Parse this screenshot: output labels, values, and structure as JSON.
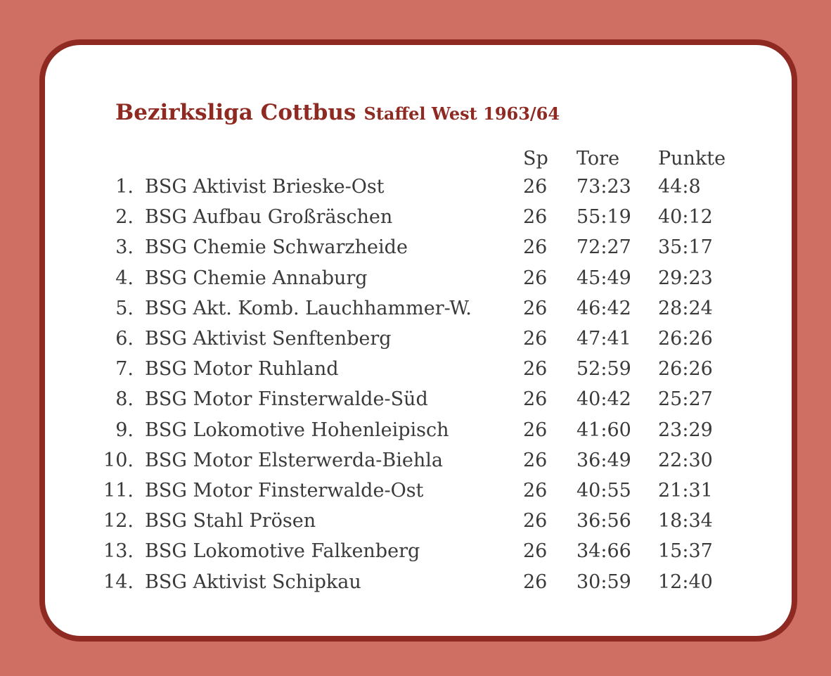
{
  "title": {
    "main": "Bezirksliga Cottbus",
    "sub": "Staffel West 1963/64"
  },
  "columns": {
    "sp": "Sp",
    "tore": "Tore",
    "punkte": "Punkte"
  },
  "rows": [
    {
      "rank": "1.",
      "team": "BSG Aktivist Brieske-Ost",
      "sp": "26",
      "tore": "73:23",
      "punkte": "44:8"
    },
    {
      "rank": "2.",
      "team": "BSG Aufbau Großräschen",
      "sp": "26",
      "tore": "55:19",
      "punkte": "40:12"
    },
    {
      "rank": "3.",
      "team": "BSG Chemie Schwarzheide",
      "sp": "26",
      "tore": "72:27",
      "punkte": "35:17"
    },
    {
      "rank": "4.",
      "team": "BSG Chemie Annaburg",
      "sp": "26",
      "tore": "45:49",
      "punkte": "29:23"
    },
    {
      "rank": "5.",
      "team": "BSG Akt. Komb. Lauchhammer-W.",
      "sp": "26",
      "tore": "46:42",
      "punkte": "28:24"
    },
    {
      "rank": "6.",
      "team": "BSG Aktivist Senftenberg",
      "sp": "26",
      "tore": "47:41",
      "punkte": "26:26"
    },
    {
      "rank": "7.",
      "team": "BSG Motor Ruhland",
      "sp": "26",
      "tore": "52:59",
      "punkte": "26:26"
    },
    {
      "rank": "8.",
      "team": "BSG Motor Finsterwalde-Süd",
      "sp": "26",
      "tore": "40:42",
      "punkte": "25:27"
    },
    {
      "rank": "9.",
      "team": "BSG Lokomotive Hohenleipisch",
      "sp": "26",
      "tore": "41:60",
      "punkte": "23:29"
    },
    {
      "rank": "10.",
      "team": "BSG Motor Elsterwerda-Biehla",
      "sp": "26",
      "tore": "36:49",
      "punkte": "22:30"
    },
    {
      "rank": "11.",
      "team": "BSG Motor Finsterwalde-Ost",
      "sp": "26",
      "tore": "40:55",
      "punkte": "21:31"
    },
    {
      "rank": "12.",
      "team": "BSG Stahl Prösen",
      "sp": "26",
      "tore": "36:56",
      "punkte": "18:34"
    },
    {
      "rank": "13.",
      "team": "BSG Lokomotive Falkenberg",
      "sp": "26",
      "tore": "34:66",
      "punkte": "15:37"
    },
    {
      "rank": "14.",
      "team": "BSG Aktivist Schipkau",
      "sp": "26",
      "tore": "30:59",
      "punkte": "12:40"
    }
  ],
  "colors": {
    "background": "#cf6f64",
    "accent": "#8f2a22",
    "card": "#ffffff",
    "text": "#3a3a3a"
  }
}
